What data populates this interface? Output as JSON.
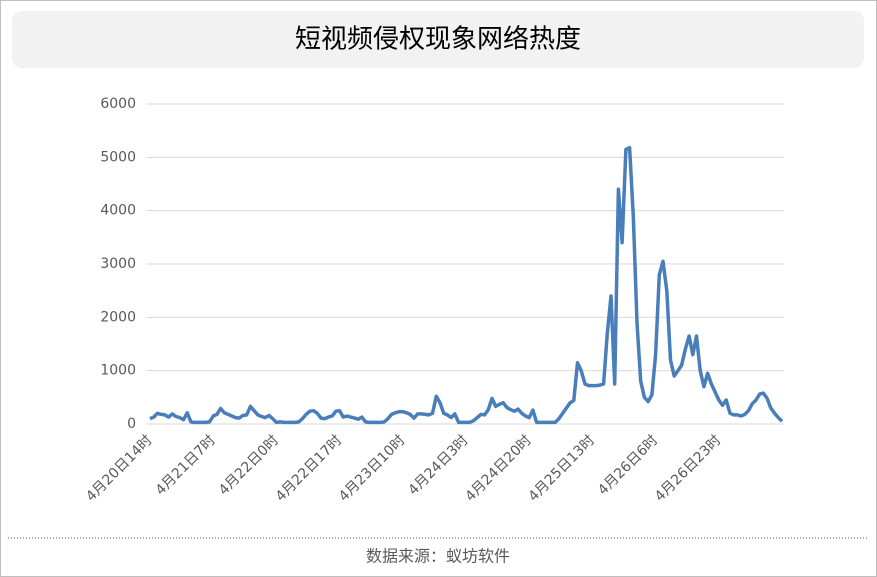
{
  "chart_data": {
    "type": "line",
    "title": "短视频侵权现象网络热度",
    "source": "数据来源：蚁坊软件",
    "color": "#4a7ebb",
    "grid": true,
    "ylim": [
      0,
      6000
    ],
    "yticks": [
      0,
      1000,
      2000,
      3000,
      4000,
      5000,
      6000
    ],
    "categories": [
      "4月20日14时",
      null,
      null,
      null,
      null,
      null,
      null,
      null,
      null,
      null,
      null,
      null,
      null,
      null,
      null,
      null,
      null,
      "4月21日7时",
      null,
      null,
      null,
      null,
      null,
      null,
      null,
      null,
      null,
      null,
      null,
      null,
      null,
      null,
      null,
      null,
      "4月22日0时",
      null,
      null,
      null,
      null,
      null,
      null,
      null,
      null,
      null,
      null,
      null,
      null,
      null,
      null,
      null,
      null,
      "4月22日17时",
      null,
      null,
      null,
      null,
      null,
      null,
      null,
      null,
      null,
      null,
      null,
      null,
      null,
      null,
      null,
      null,
      "4月23日10时",
      null,
      null,
      null,
      null,
      null,
      null,
      null,
      null,
      null,
      null,
      null,
      null,
      null,
      null,
      null,
      null,
      "4月24日3时",
      null,
      null,
      null,
      null,
      null,
      null,
      null,
      null,
      null,
      null,
      null,
      null,
      null,
      null,
      null,
      null,
      "4月24日20时",
      null,
      null,
      null,
      null,
      null,
      null,
      null,
      null,
      null,
      null,
      null,
      null,
      null,
      null,
      null,
      null,
      "4月25日13时",
      null,
      null,
      null,
      null,
      null,
      null,
      null,
      null,
      null,
      null,
      null,
      null,
      null,
      null,
      null,
      null,
      "4月26日6时",
      null,
      null,
      null,
      null,
      null,
      null,
      null,
      null,
      null,
      null,
      null,
      null,
      null,
      null,
      null,
      null,
      "4月26日23时",
      null,
      null,
      null,
      null,
      null,
      null,
      null,
      null,
      null,
      null,
      null,
      null,
      null,
      null,
      null,
      null,
      null
    ],
    "values": [
      100,
      130,
      200,
      180,
      170,
      130,
      190,
      140,
      120,
      80,
      210,
      40,
      30,
      30,
      30,
      30,
      40,
      150,
      180,
      290,
      210,
      180,
      150,
      120,
      110,
      160,
      170,
      330,
      250,
      170,
      140,
      120,
      160,
      100,
      30,
      40,
      30,
      30,
      30,
      30,
      40,
      100,
      180,
      240,
      250,
      200,
      110,
      100,
      130,
      150,
      240,
      250,
      130,
      150,
      130,
      110,
      90,
      130,
      40,
      30,
      30,
      30,
      30,
      40,
      100,
      180,
      210,
      230,
      230,
      210,
      180,
      110,
      190,
      190,
      180,
      170,
      200,
      520,
      400,
      200,
      170,
      120,
      190,
      30,
      30,
      30,
      30,
      60,
      120,
      180,
      170,
      270,
      480,
      330,
      370,
      400,
      310,
      270,
      240,
      280,
      200,
      150,
      120,
      260,
      30,
      30,
      30,
      30,
      30,
      30,
      100,
      200,
      300,
      400,
      440,
      1150,
      1000,
      750,
      720,
      720,
      720,
      730,
      750,
      1700,
      2400,
      750,
      4400,
      3400,
      5150,
      5180,
      3900,
      1900,
      800,
      500,
      420,
      550,
      1300,
      2800,
      3050,
      2500,
      1200,
      900,
      1000,
      1100,
      1400,
      1650,
      1300,
      1650,
      1000,
      700,
      950,
      750,
      600,
      450,
      350,
      450,
      200,
      170,
      170,
      150,
      180,
      250,
      380,
      450,
      560,
      580,
      480,
      300,
      200,
      120,
      50
    ]
  }
}
